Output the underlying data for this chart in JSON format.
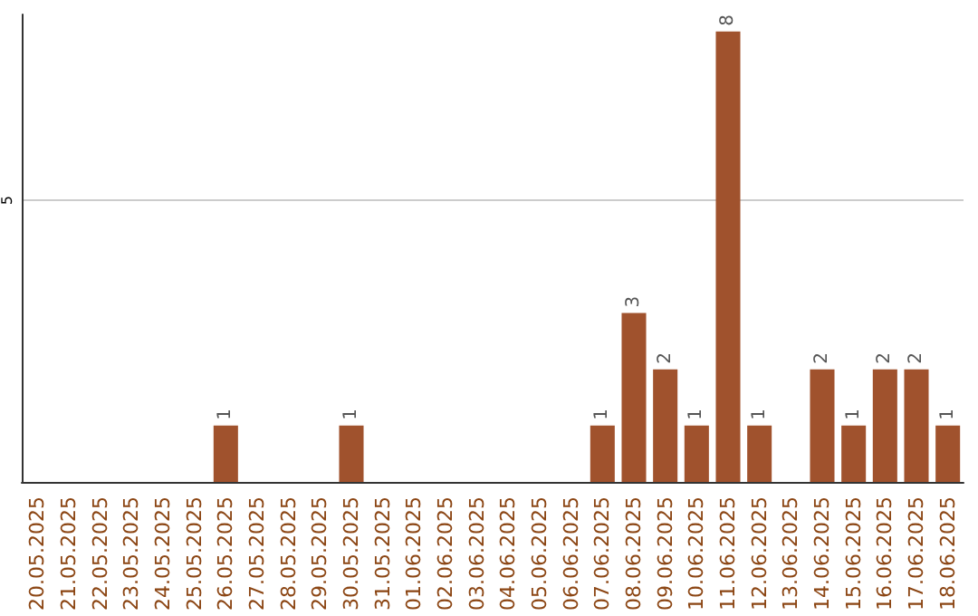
{
  "chart_data": {
    "type": "bar",
    "categories": [
      "20.05.2025",
      "21.05.2025",
      "22.05.2025",
      "23.05.2025",
      "24.05.2025",
      "25.05.2025",
      "26.05.2025",
      "27.05.2025",
      "28.05.2025",
      "29.05.2025",
      "30.05.2025",
      "31.05.2025",
      "01.06.2025",
      "02.06.2025",
      "03.06.2025",
      "04.06.2025",
      "05.06.2025",
      "06.06.2025",
      "07.06.2025",
      "08.06.2025",
      "09.06.2025",
      "10.06.2025",
      "11.06.2025",
      "12.06.2025",
      "13.06.2025",
      "14.06.2025",
      "15.06.2025",
      "16.06.2025",
      "17.06.2025",
      "18.06.2025"
    ],
    "values": [
      0,
      0,
      0,
      0,
      0,
      0,
      1,
      0,
      0,
      0,
      1,
      0,
      0,
      0,
      0,
      0,
      0,
      0,
      1,
      3,
      2,
      1,
      8,
      1,
      0,
      2,
      1,
      2,
      2,
      1
    ],
    "value_labels": [
      null,
      null,
      null,
      null,
      null,
      null,
      "1",
      null,
      null,
      null,
      "1",
      null,
      null,
      null,
      null,
      null,
      null,
      null,
      "1",
      "3",
      "2",
      "1",
      "8",
      "1",
      null,
      "2",
      "1",
      "2",
      "2",
      "1"
    ],
    "color": "#a0522d",
    "ylim": [
      0,
      8.3
    ],
    "yticks": [
      5
    ],
    "grid": "y"
  }
}
